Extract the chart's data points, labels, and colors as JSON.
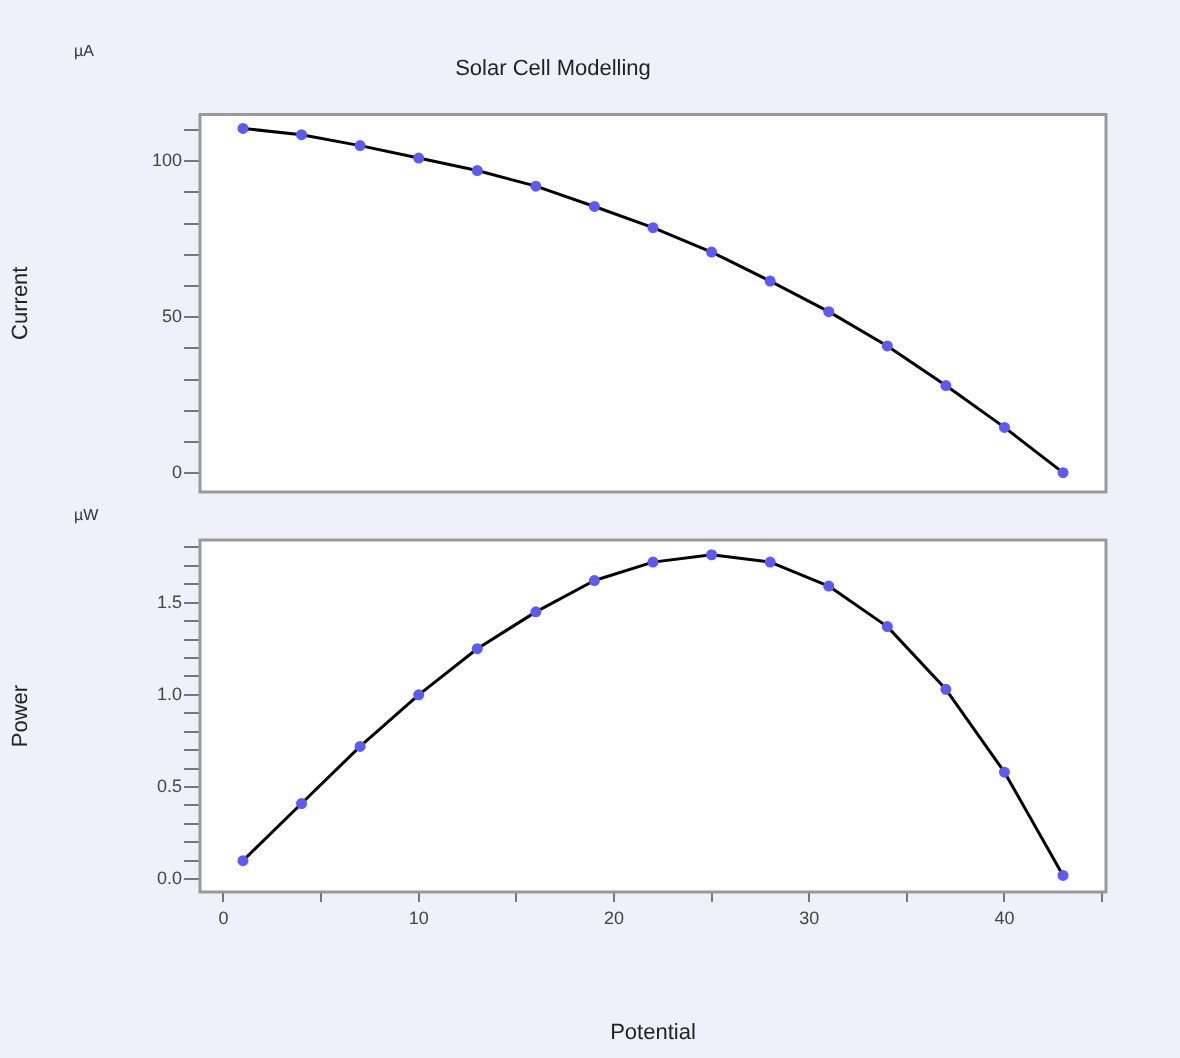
{
  "chart_data": [
    {
      "type": "line",
      "title": "Solar Cell Modelling",
      "ylabel": "Current",
      "annotations": [
        "µA"
      ],
      "marker": "circle",
      "legend": false,
      "tick_labels": "y",
      "xlim": [
        -1.2,
        45.2
      ],
      "ylim": [
        -6,
        115
      ],
      "yticks": [
        0,
        {
          "value": 10,
          "label": null
        },
        {
          "value": 20,
          "label": null
        },
        {
          "value": 30,
          "label": null
        },
        {
          "value": 40,
          "label": null
        },
        50,
        {
          "value": 60,
          "label": null
        },
        {
          "value": 70,
          "label": null
        },
        {
          "value": 80,
          "label": null
        },
        {
          "value": 90,
          "label": null
        },
        100,
        {
          "value": 110,
          "label": null
        }
      ],
      "x": [
        1,
        4,
        7,
        10,
        13,
        16,
        19,
        22,
        25,
        28,
        31,
        34,
        37,
        40,
        43
      ],
      "series": [
        {
          "color": "#000000",
          "values": [
            110.5,
            108.5,
            105,
            101,
            97,
            92,
            85.5,
            78.7,
            70.9,
            61.6,
            51.8,
            40.8,
            28.1,
            14.7,
            0.2
          ]
        }
      ]
    },
    {
      "type": "line",
      "xlabel": "Potential",
      "ylabel": "Power",
      "annotations": [
        "µW"
      ],
      "marker": "circle",
      "legend": false,
      "xlim": [
        -1.2,
        45.2
      ],
      "ylim": [
        -0.07,
        1.84
      ],
      "xticks": [
        0,
        {
          "value": 5,
          "label": null
        },
        10,
        {
          "value": 15,
          "label": null
        },
        20,
        {
          "value": 25,
          "label": null
        },
        30,
        {
          "value": 35,
          "label": null
        },
        40,
        {
          "value": 45,
          "label": null
        }
      ],
      "yticks": [
        {
          "value": 0,
          "label": "0.0"
        },
        {
          "value": 0.1,
          "label": null
        },
        {
          "value": 0.2,
          "label": null
        },
        {
          "value": 0.3,
          "label": null
        },
        {
          "value": 0.4,
          "label": null
        },
        {
          "value": 0.5,
          "label": "0.5"
        },
        {
          "value": 0.6,
          "label": null
        },
        {
          "value": 0.7,
          "label": null
        },
        {
          "value": 0.8,
          "label": null
        },
        {
          "value": 0.9,
          "label": null
        },
        {
          "value": 1,
          "label": "1.0"
        },
        {
          "value": 1.1,
          "label": null
        },
        {
          "value": 1.2,
          "label": null
        },
        {
          "value": 1.3,
          "label": null
        },
        {
          "value": 1.4,
          "label": null
        },
        {
          "value": 1.5,
          "label": "1.5"
        },
        {
          "value": 1.6,
          "label": null
        },
        {
          "value": 1.7,
          "label": null
        },
        {
          "value": 1.8,
          "label": null
        }
      ],
      "x": [
        1,
        4,
        7,
        10,
        13,
        16,
        19,
        22,
        25,
        28,
        31,
        34,
        37,
        40,
        43
      ],
      "series": [
        {
          "color": "#000000",
          "values": [
            0.1,
            0.41,
            0.72,
            1.0,
            1.25,
            1.45,
            1.62,
            1.72,
            1.76,
            1.72,
            1.59,
            1.37,
            1.03,
            0.58,
            0.02
          ]
        }
      ]
    }
  ]
}
